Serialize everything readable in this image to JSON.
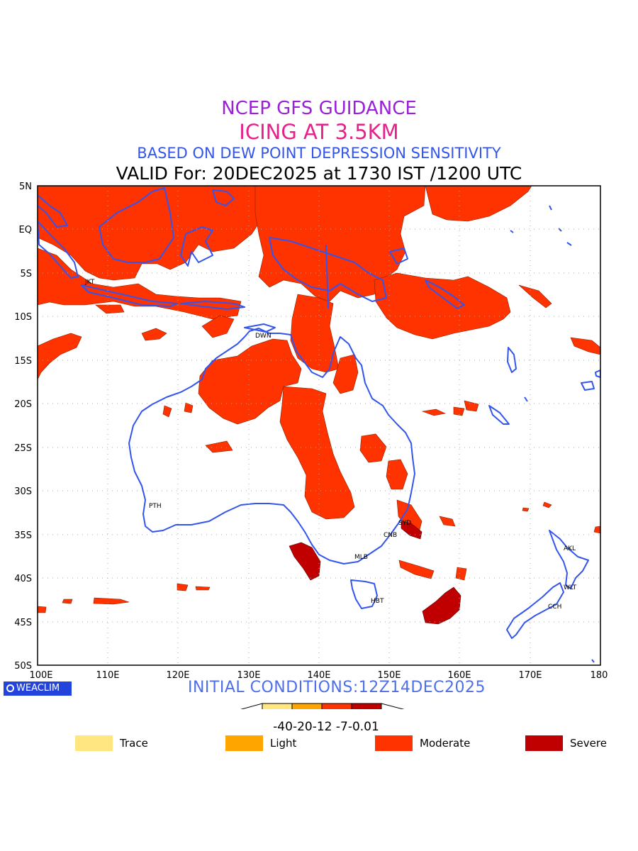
{
  "titles": {
    "line1": "NCEP GFS GUIDANCE",
    "line2": "ICING AT 3.5KM",
    "line3": "BASED ON DEW POINT DEPRESSION SENSITIVITY",
    "line4": "VALID For: 20DEC2025 at 1730 IST /1200 UTC"
  },
  "map": {
    "lat_labels": [
      "5N",
      "EQ",
      "5S",
      "10S",
      "15S",
      "20S",
      "25S",
      "30S",
      "35S",
      "40S",
      "45S",
      "50S"
    ],
    "lon_labels": [
      "100E",
      "110E",
      "120E",
      "130E",
      "140E",
      "150E",
      "160E",
      "170E",
      "180"
    ],
    "cities": [
      "JKT",
      "DWN",
      "PTH",
      "SYD",
      "CNB",
      "MLB",
      "HBT",
      "AKL",
      "WLT",
      "CCH"
    ],
    "colors": {
      "coast": "#3355ee",
      "moderate": "#ff3300",
      "severe": "#c00000",
      "grid": "#999999"
    }
  },
  "badge": "WEACLIM",
  "initial": "INITIAL CONDITIONS:12Z14DEC2025",
  "colorbar": {
    "ticks": "-40-20-12 -7-0.01",
    "colors": [
      "#ffe680",
      "#ffa500",
      "#ff3300",
      "#c00000"
    ]
  },
  "legend": [
    {
      "label": "Trace",
      "color": "#ffe680"
    },
    {
      "label": "Light",
      "color": "#ffa500"
    },
    {
      "label": "Moderate",
      "color": "#ff3300"
    },
    {
      "label": "Severe",
      "color": "#c00000"
    }
  ]
}
